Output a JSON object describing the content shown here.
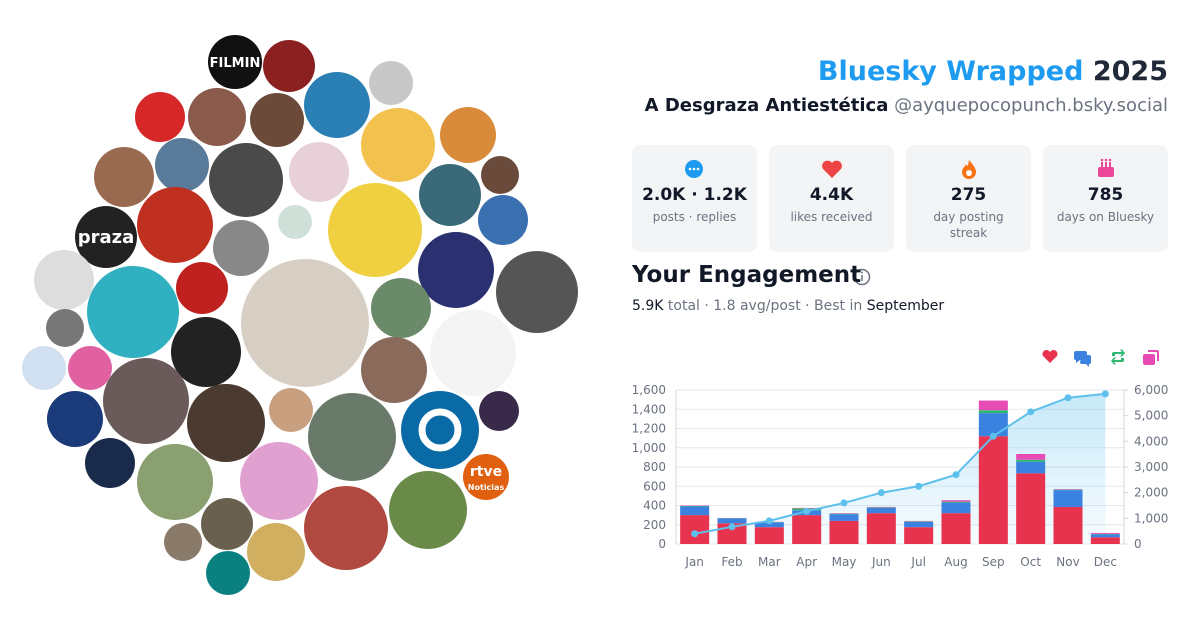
{
  "header": {
    "title": "Bluesky Wrapped",
    "year": "2025",
    "name": "A Desgraza Antiestética",
    "handle": "@ayquepocopunch.bsky.social"
  },
  "stats": [
    {
      "value": "2.0K · 1.2K",
      "label": "posts · replies"
    },
    {
      "value": "4.4K",
      "label": "likes received"
    },
    {
      "value": "275",
      "label": "day posting streak"
    },
    {
      "value": "785",
      "label": "days on Bluesky"
    }
  ],
  "engagement": {
    "heading": "Your Engagement",
    "total": "5.9K",
    "middle": " total · 1.8 avg/post · Best in ",
    "best": "September"
  },
  "avatars": {
    "labels": [
      "FILMIN",
      "praza",
      "rtve",
      "Noticias"
    ]
  },
  "chart_data": {
    "type": "bar",
    "stacked": true,
    "grid": true,
    "categories": [
      "Jan",
      "Feb",
      "Mar",
      "Apr",
      "May",
      "Jun",
      "Jul",
      "Aug",
      "Sep",
      "Oct",
      "Nov",
      "Dec"
    ],
    "series": [
      {
        "color": "#e8334f",
        "values": [
          300,
          215,
          175,
          300,
          240,
          320,
          175,
          320,
          1120,
          735,
          385,
          70
        ]
      },
      {
        "color": "#3b82e0",
        "values": [
          90,
          50,
          50,
          50,
          70,
          55,
          55,
          110,
          240,
          120,
          175,
          30
        ]
      },
      {
        "color": "#2eb872",
        "values": [
          5,
          3,
          3,
          20,
          5,
          5,
          5,
          10,
          30,
          20,
          5,
          5
        ]
      },
      {
        "color": "#e94bb5",
        "values": [
          5,
          2,
          2,
          5,
          5,
          5,
          5,
          15,
          100,
          60,
          5,
          10
        ]
      },
      {
        "color": "#5ec0ec",
        "type": "line",
        "axis": "y2",
        "values": [
          400,
          670,
          900,
          1275,
          1600,
          2000,
          2250,
          2700,
          4200,
          5150,
          5700,
          5850
        ]
      }
    ],
    "ylim": [
      0,
      1600
    ],
    "yticks": [
      0,
      200,
      400,
      600,
      800,
      {
        "value": 1000,
        "label": "1,000"
      },
      {
        "value": 1200,
        "label": "1,200"
      },
      {
        "value": 1400,
        "label": "1,400"
      },
      {
        "value": 1600,
        "label": "1,600"
      }
    ],
    "y2lim": [
      0,
      6000
    ],
    "y2ticks": [
      0,
      {
        "value": 1000,
        "label": "1,000"
      },
      {
        "value": 2000,
        "label": "2,000"
      },
      {
        "value": 3000,
        "label": "3,000"
      },
      {
        "value": 4000,
        "label": "4,000"
      },
      {
        "value": 5000,
        "label": "5,000"
      },
      {
        "value": 6000,
        "label": "6,000"
      }
    ]
  }
}
